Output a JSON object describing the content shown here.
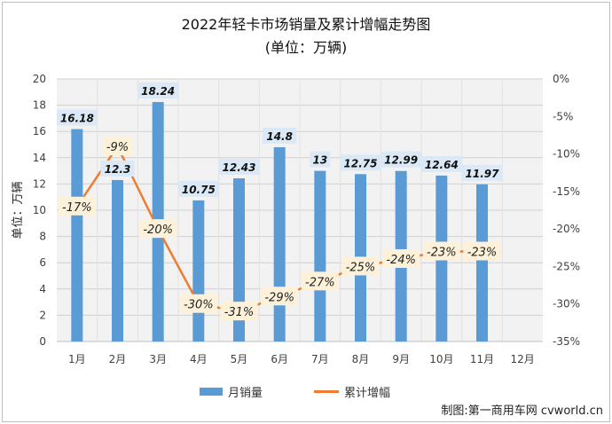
{
  "title": "2022年轻卡市场销量及累计增幅走势图",
  "subtitle": "(单位：万辆)",
  "source": "制图:第一商用车网 cvworld.cn",
  "colors": {
    "bar": "#5b9bd5",
    "line": "#ed7d31",
    "label_bg": "#fdf2d9",
    "bar_label_bg": "#dbe9f7",
    "plot_bg": "#f2f2f2"
  },
  "chart_data": {
    "type": "bar",
    "categories": [
      "1月",
      "2月",
      "3月",
      "4月",
      "5月",
      "6月",
      "7月",
      "8月",
      "9月",
      "10月",
      "11月",
      "12月"
    ],
    "ylabel": "单位：万辆",
    "ylim": [
      0,
      20
    ],
    "y_ticks": [
      "0",
      "2",
      "4",
      "6",
      "8",
      "10",
      "12",
      "14",
      "16",
      "18",
      "20"
    ],
    "y2lim": [
      -35,
      0
    ],
    "y2_ticks": [
      "-35%",
      "-30%",
      "-25%",
      "-20%",
      "-15%",
      "-10%",
      "-5%",
      "0%"
    ],
    "grid": true,
    "legend_position": "bottom",
    "series": [
      {
        "name": "月销量",
        "type": "bar",
        "axis": "left",
        "values": [
          16.18,
          12.3,
          18.24,
          10.75,
          12.43,
          14.8,
          13,
          12.75,
          12.99,
          12.64,
          11.97,
          null
        ],
        "labels": [
          "16.18",
          "12.3",
          "18.24",
          "10.75",
          "12.43",
          "14.8",
          "13",
          "12.75",
          "12.99",
          "12.64",
          "11.97",
          ""
        ]
      },
      {
        "name": "累计增幅",
        "type": "line",
        "axis": "right",
        "values": [
          -17,
          -9,
          -20,
          -30,
          -31,
          -29,
          -27,
          -25,
          -24,
          -23,
          -23,
          null
        ],
        "labels": [
          "-17%",
          "-9%",
          "-20%",
          "-30%",
          "-31%",
          "-29%",
          "-27%",
          "-25%",
          "-24%",
          "-23%",
          "-23%",
          ""
        ]
      }
    ]
  }
}
